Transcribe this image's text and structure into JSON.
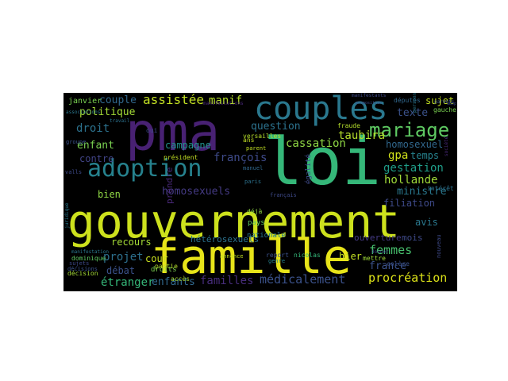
{
  "wordcloud": {
    "background": "#000000",
    "palette": [
      "#440154",
      "#482878",
      "#3e4a89",
      "#31688e",
      "#26828e",
      "#1f9e89",
      "#35b779",
      "#6ece58",
      "#b5de2b",
      "#fde725"
    ],
    "words": [
      {
        "text": "gouvernement",
        "color": "#cde11d"
      },
      {
        "text": "famille",
        "color": "#e7e419"
      },
      {
        "text": "loi",
        "color": "#35b779"
      },
      {
        "text": "pma",
        "color": "#482173"
      },
      {
        "text": "couples",
        "color": "#2a788e"
      },
      {
        "text": "adoption",
        "color": "#26828e"
      },
      {
        "text": "mariage",
        "color": "#5ec962"
      },
      {
        "text": "assistée",
        "color": "#c2df23"
      },
      {
        "text": "procréation",
        "color": "#dde318"
      },
      {
        "text": "médicalement",
        "color": "#3b528b"
      },
      {
        "text": "couple",
        "color": "#31688e"
      },
      {
        "text": "manif",
        "color": "#b5de2b"
      },
      {
        "text": "politique",
        "color": "#a5db36"
      },
      {
        "text": "droit",
        "color": "#2c728e"
      },
      {
        "text": "enfant",
        "color": "#7ad151"
      },
      {
        "text": "contre",
        "color": "#414487"
      },
      {
        "text": "campagne",
        "color": "#21918c"
      },
      {
        "text": "françois",
        "color": "#3e4a89"
      },
      {
        "text": "question",
        "color": "#2c728e"
      },
      {
        "text": "cassation",
        "color": "#8fd744"
      },
      {
        "text": "taubira",
        "color": "#b5de2b"
      },
      {
        "text": "texte",
        "color": "#3b528b"
      },
      {
        "text": "homosexuel",
        "color": "#31688e"
      },
      {
        "text": "gpa",
        "color": "#d2e21b"
      },
      {
        "text": "temps",
        "color": "#26828e"
      },
      {
        "text": "gestation",
        "color": "#1f9e89"
      },
      {
        "text": "hollande",
        "color": "#a0da39"
      },
      {
        "text": "ministre",
        "color": "#2a788e"
      },
      {
        "text": "filiation",
        "color": "#3e4a89"
      },
      {
        "text": "homosexuels",
        "color": "#443a83"
      },
      {
        "text": "bien",
        "color": "#8fd744"
      },
      {
        "text": "recours",
        "color": "#a5db36"
      },
      {
        "text": "projet",
        "color": "#2d708e"
      },
      {
        "text": "cour",
        "color": "#c8e020"
      },
      {
        "text": "débat",
        "color": "#3b528b"
      },
      {
        "text": "hétérosexuels",
        "color": "#2c728e"
      },
      {
        "text": "femmes",
        "color": "#48c16e"
      },
      {
        "text": "france",
        "color": "#3b528b"
      },
      {
        "text": "ouverture",
        "color": "#443983"
      },
      {
        "text": "mois",
        "color": "#3e4a89"
      },
      {
        "text": "hier",
        "color": "#c2df23"
      },
      {
        "text": "étranger",
        "color": "#35b779"
      },
      {
        "text": "enfants",
        "color": "#31688e"
      },
      {
        "text": "familles",
        "color": "#472d7b"
      },
      {
        "text": "avis",
        "color": "#2a788e"
      },
      {
        "text": "sujet",
        "color": "#c2df23"
      },
      {
        "text": "janvier",
        "color": "#7ad151"
      },
      {
        "text": "pays",
        "color": "#5ec962"
      },
      {
        "text": "nationale",
        "color": "#2a788e"
      },
      {
        "text": "droits",
        "color": "#7ad151"
      },
      {
        "text": "accès",
        "color": "#a8db34"
      },
      {
        "text": "président",
        "color": "#c2df23"
      },
      {
        "text": "versailles",
        "color": "#b5de2b"
      },
      {
        "text": "députés",
        "color": "#31688e"
      },
      {
        "text": "gauche",
        "color": "#7ad151"
      },
      {
        "text": "fraude",
        "color": "#b5de2b"
      },
      {
        "text": "parent",
        "color": "#c2df23"
      },
      {
        "text": "manuel",
        "color": "#31688e"
      },
      {
        "text": "paris",
        "color": "#2c728e"
      },
      {
        "text": "nicolas",
        "color": "#35b779"
      },
      {
        "text": "français",
        "color": "#3e4a89"
      },
      {
        "text": "report",
        "color": "#3b528b"
      },
      {
        "text": "annonce",
        "color": "#c2df23"
      },
      {
        "text": "prendre",
        "color": "#482878"
      },
      {
        "text": "partie",
        "color": "#b5de2b"
      },
      {
        "text": "décisions",
        "color": "#3b528b"
      },
      {
        "text": "dominique",
        "color": "#5ec962"
      },
      {
        "text": "décision",
        "color": "#a5db36"
      },
      {
        "text": "mettre",
        "color": "#a0da39"
      },
      {
        "text": "colère",
        "color": "#3b528b"
      },
      {
        "text": "genre",
        "color": "#26828e"
      },
      {
        "text": "égalité",
        "color": "#3e4a89"
      },
      {
        "text": "intérêt",
        "color": "#2c728e"
      },
      {
        "text": "manifestants",
        "color": "#3e4a89"
      },
      {
        "text": "manifestations",
        "color": "#482878"
      },
      {
        "text": "groupe",
        "color": "#3b528b"
      },
      {
        "text": "travail",
        "color": "#2c728e"
      },
      {
        "text": "valls",
        "color": "#3e4a89"
      },
      {
        "text": "juridique",
        "color": "#2a788e"
      },
      {
        "text": "sujets",
        "color": "#3e4a89"
      },
      {
        "text": "associations",
        "color": "#2a788e"
      },
      {
        "text": "déjà",
        "color": "#8fd744"
      },
      {
        "text": "ans",
        "color": "#c2df23"
      },
      {
        "text": "oui",
        "color": "#3e4a89"
      },
      {
        "text": "parents",
        "color": "#3b528b"
      },
      {
        "text": "société",
        "color": "#482878"
      },
      {
        "text": "nouveau",
        "color": "#3e4a89"
      },
      {
        "text": "manifestation",
        "color": "#2a788e"
      },
      {
        "text": "proposition",
        "color": "#3e4a89"
      },
      {
        "text": "donner",
        "color": "#3e4a89"
      },
      {
        "text": "adoptée",
        "color": "#3e4a89"
      },
      {
        "text": "personnes",
        "color": "#2a788e"
      }
    ]
  }
}
